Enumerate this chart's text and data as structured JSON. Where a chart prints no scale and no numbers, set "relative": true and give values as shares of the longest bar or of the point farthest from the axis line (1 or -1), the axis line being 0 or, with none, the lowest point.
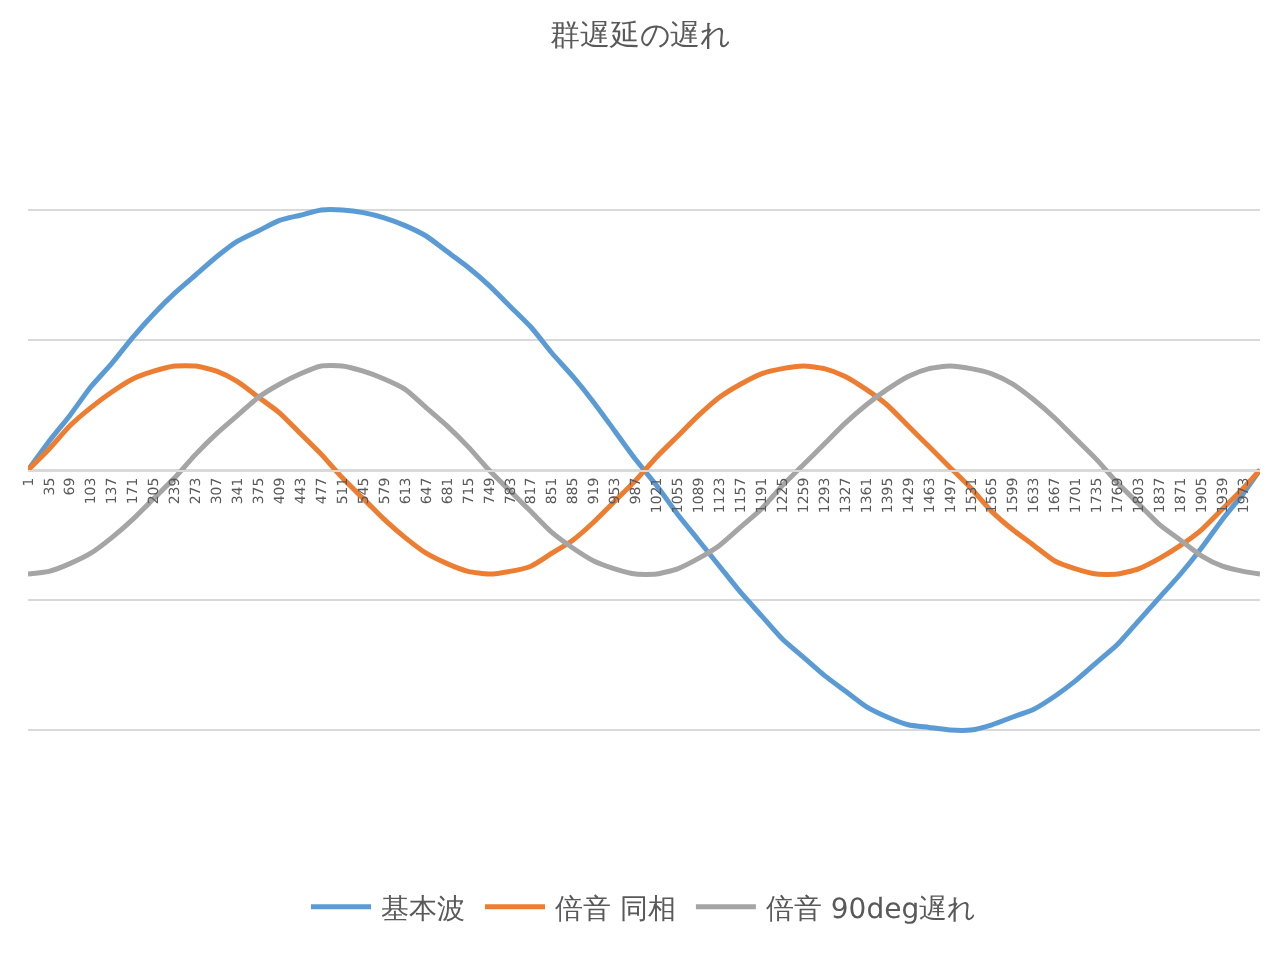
{
  "chart_data": {
    "type": "line",
    "title": "群遅延の遅れ",
    "relative": true,
    "grid": "y",
    "legend": "bottom",
    "marker": "none",
    "line_style": "solid",
    "x": [
      1,
      35,
      69,
      103,
      137,
      171,
      205,
      239,
      273,
      307,
      341,
      375,
      409,
      443,
      477,
      511,
      545,
      579,
      613,
      647,
      681,
      715,
      749,
      783,
      817,
      851,
      885,
      919,
      953,
      987,
      1021,
      1055,
      1089,
      1123,
      1157,
      1191,
      1225,
      1259,
      1293,
      1327,
      1361,
      1395,
      1429,
      1463,
      1497,
      1531,
      1565,
      1599,
      1633,
      1667,
      1701,
      1735,
      1769,
      1803,
      1837,
      1871,
      1905,
      1939,
      1973,
      2000
    ],
    "xlim": [
      1,
      2000
    ],
    "xticks": [
      1,
      35,
      69,
      103,
      137,
      171,
      205,
      239,
      273,
      307,
      341,
      375,
      409,
      443,
      477,
      511,
      545,
      579,
      613,
      647,
      681,
      715,
      749,
      783,
      817,
      851,
      885,
      919,
      953,
      987,
      1021,
      1055,
      1089,
      1123,
      1157,
      1191,
      1225,
      1259,
      1293,
      1327,
      1361,
      1395,
      1429,
      1463,
      1497,
      1531,
      1565,
      1599,
      1633,
      1667,
      1701,
      1735,
      1769,
      1803,
      1837,
      1871,
      1905,
      1939,
      1973
    ],
    "series": [
      {
        "name": "基本波",
        "color": "#5b9bd5",
        "values": [
          0,
          0.11,
          0.21,
          0.32,
          0.41,
          0.51,
          0.6,
          0.68,
          0.75,
          0.82,
          0.88,
          0.92,
          0.96,
          0.98,
          1.0,
          1.0,
          0.99,
          0.97,
          0.94,
          0.9,
          0.84,
          0.78,
          0.71,
          0.63,
          0.55,
          0.45,
          0.36,
          0.26,
          0.15,
          0.04,
          -0.06,
          -0.17,
          -0.27,
          -0.37,
          -0.47,
          -0.56,
          -0.65,
          -0.72,
          -0.79,
          -0.85,
          -0.91,
          -0.95,
          -0.98,
          -0.99,
          -1.0,
          -1.0,
          -0.98,
          -0.95,
          -0.92,
          -0.87,
          -0.81,
          -0.74,
          -0.67,
          -0.58,
          -0.49,
          -0.4,
          -0.3,
          -0.19,
          -0.09,
          0
        ]
      },
      {
        "name": "倍音 同相",
        "color": "#ed7d31",
        "values": [
          0,
          0.08,
          0.17,
          0.24,
          0.3,
          0.35,
          0.38,
          0.4,
          0.4,
          0.38,
          0.34,
          0.28,
          0.22,
          0.14,
          0.06,
          -0.03,
          -0.11,
          -0.19,
          -0.26,
          -0.32,
          -0.36,
          -0.39,
          -0.4,
          -0.39,
          -0.37,
          -0.32,
          -0.27,
          -0.2,
          -0.12,
          -0.04,
          0.05,
          0.13,
          0.21,
          0.28,
          0.33,
          0.37,
          0.39,
          0.4,
          0.39,
          0.36,
          0.31,
          0.25,
          0.17,
          0.09,
          0.01,
          -0.07,
          -0.16,
          -0.23,
          -0.29,
          -0.35,
          -0.38,
          -0.4,
          -0.4,
          -0.38,
          -0.34,
          -0.29,
          -0.23,
          -0.15,
          -0.07,
          0
        ]
      },
      {
        "name": "倍音 90deg遅れ",
        "color": "#a5a5a5",
        "values": [
          -0.4,
          -0.39,
          -0.36,
          -0.32,
          -0.26,
          -0.19,
          -0.11,
          -0.03,
          0.06,
          0.14,
          0.21,
          0.28,
          0.33,
          0.37,
          0.4,
          0.4,
          0.38,
          0.35,
          0.31,
          0.24,
          0.17,
          0.09,
          0.0,
          -0.08,
          -0.16,
          -0.24,
          -0.3,
          -0.35,
          -0.38,
          -0.4,
          -0.4,
          -0.38,
          -0.34,
          -0.29,
          -0.22,
          -0.15,
          -0.06,
          0.02,
          0.1,
          0.18,
          0.25,
          0.31,
          0.36,
          0.39,
          0.4,
          0.39,
          0.37,
          0.33,
          0.27,
          0.2,
          0.12,
          0.04,
          -0.05,
          -0.13,
          -0.21,
          -0.27,
          -0.33,
          -0.37,
          -0.39,
          -0.4
        ]
      }
    ]
  }
}
